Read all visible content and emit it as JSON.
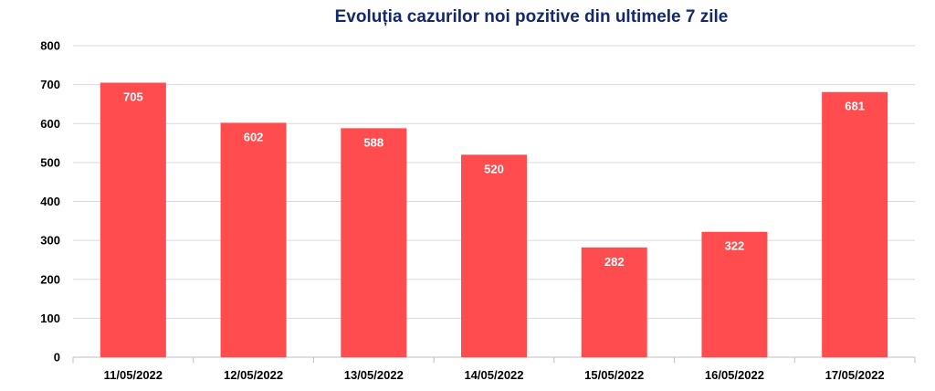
{
  "chart_data": {
    "type": "bar",
    "title": "Evoluția cazurilor noi pozitive din ultimele 7 zile",
    "xlabel": "",
    "ylabel": "",
    "categories": [
      "11/05/2022",
      "12/05/2022",
      "13/05/2022",
      "14/05/2022",
      "15/05/2022",
      "16/05/2022",
      "17/05/2022"
    ],
    "values": [
      705,
      602,
      588,
      520,
      282,
      322,
      681
    ],
    "value_labels": [
      "705",
      "602",
      "588",
      "520",
      "282",
      "322",
      "681"
    ],
    "yticks": [
      "0",
      "100",
      "200",
      "300",
      "400",
      "500",
      "600",
      "700",
      "800"
    ],
    "ylim": [
      0,
      800
    ],
    "grid": true,
    "legend": "none",
    "bar_color": "#ff4d4f",
    "title_color": "#14296b"
  }
}
